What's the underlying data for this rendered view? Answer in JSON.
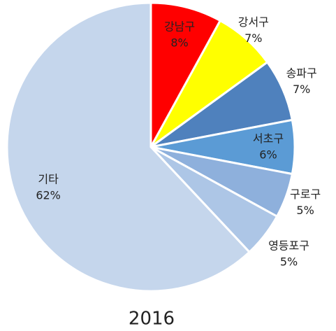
{
  "chart_data": {
    "type": "pie",
    "title": "2016",
    "categories": [
      "강남구",
      "강서구",
      "송파구",
      "서초구",
      "구로구",
      "영등포구",
      "기타"
    ],
    "values": [
      8,
      7,
      7,
      6,
      5,
      5,
      62
    ],
    "value_labels": [
      "8%",
      "7%",
      "7%",
      "6%",
      "5%",
      "5%",
      "62%"
    ],
    "colors": [
      "#ff0000",
      "#ffff00",
      "#4f81bd",
      "#5b9bd5",
      "#8eb0dc",
      "#adc6e6",
      "#c5d6ec"
    ]
  }
}
